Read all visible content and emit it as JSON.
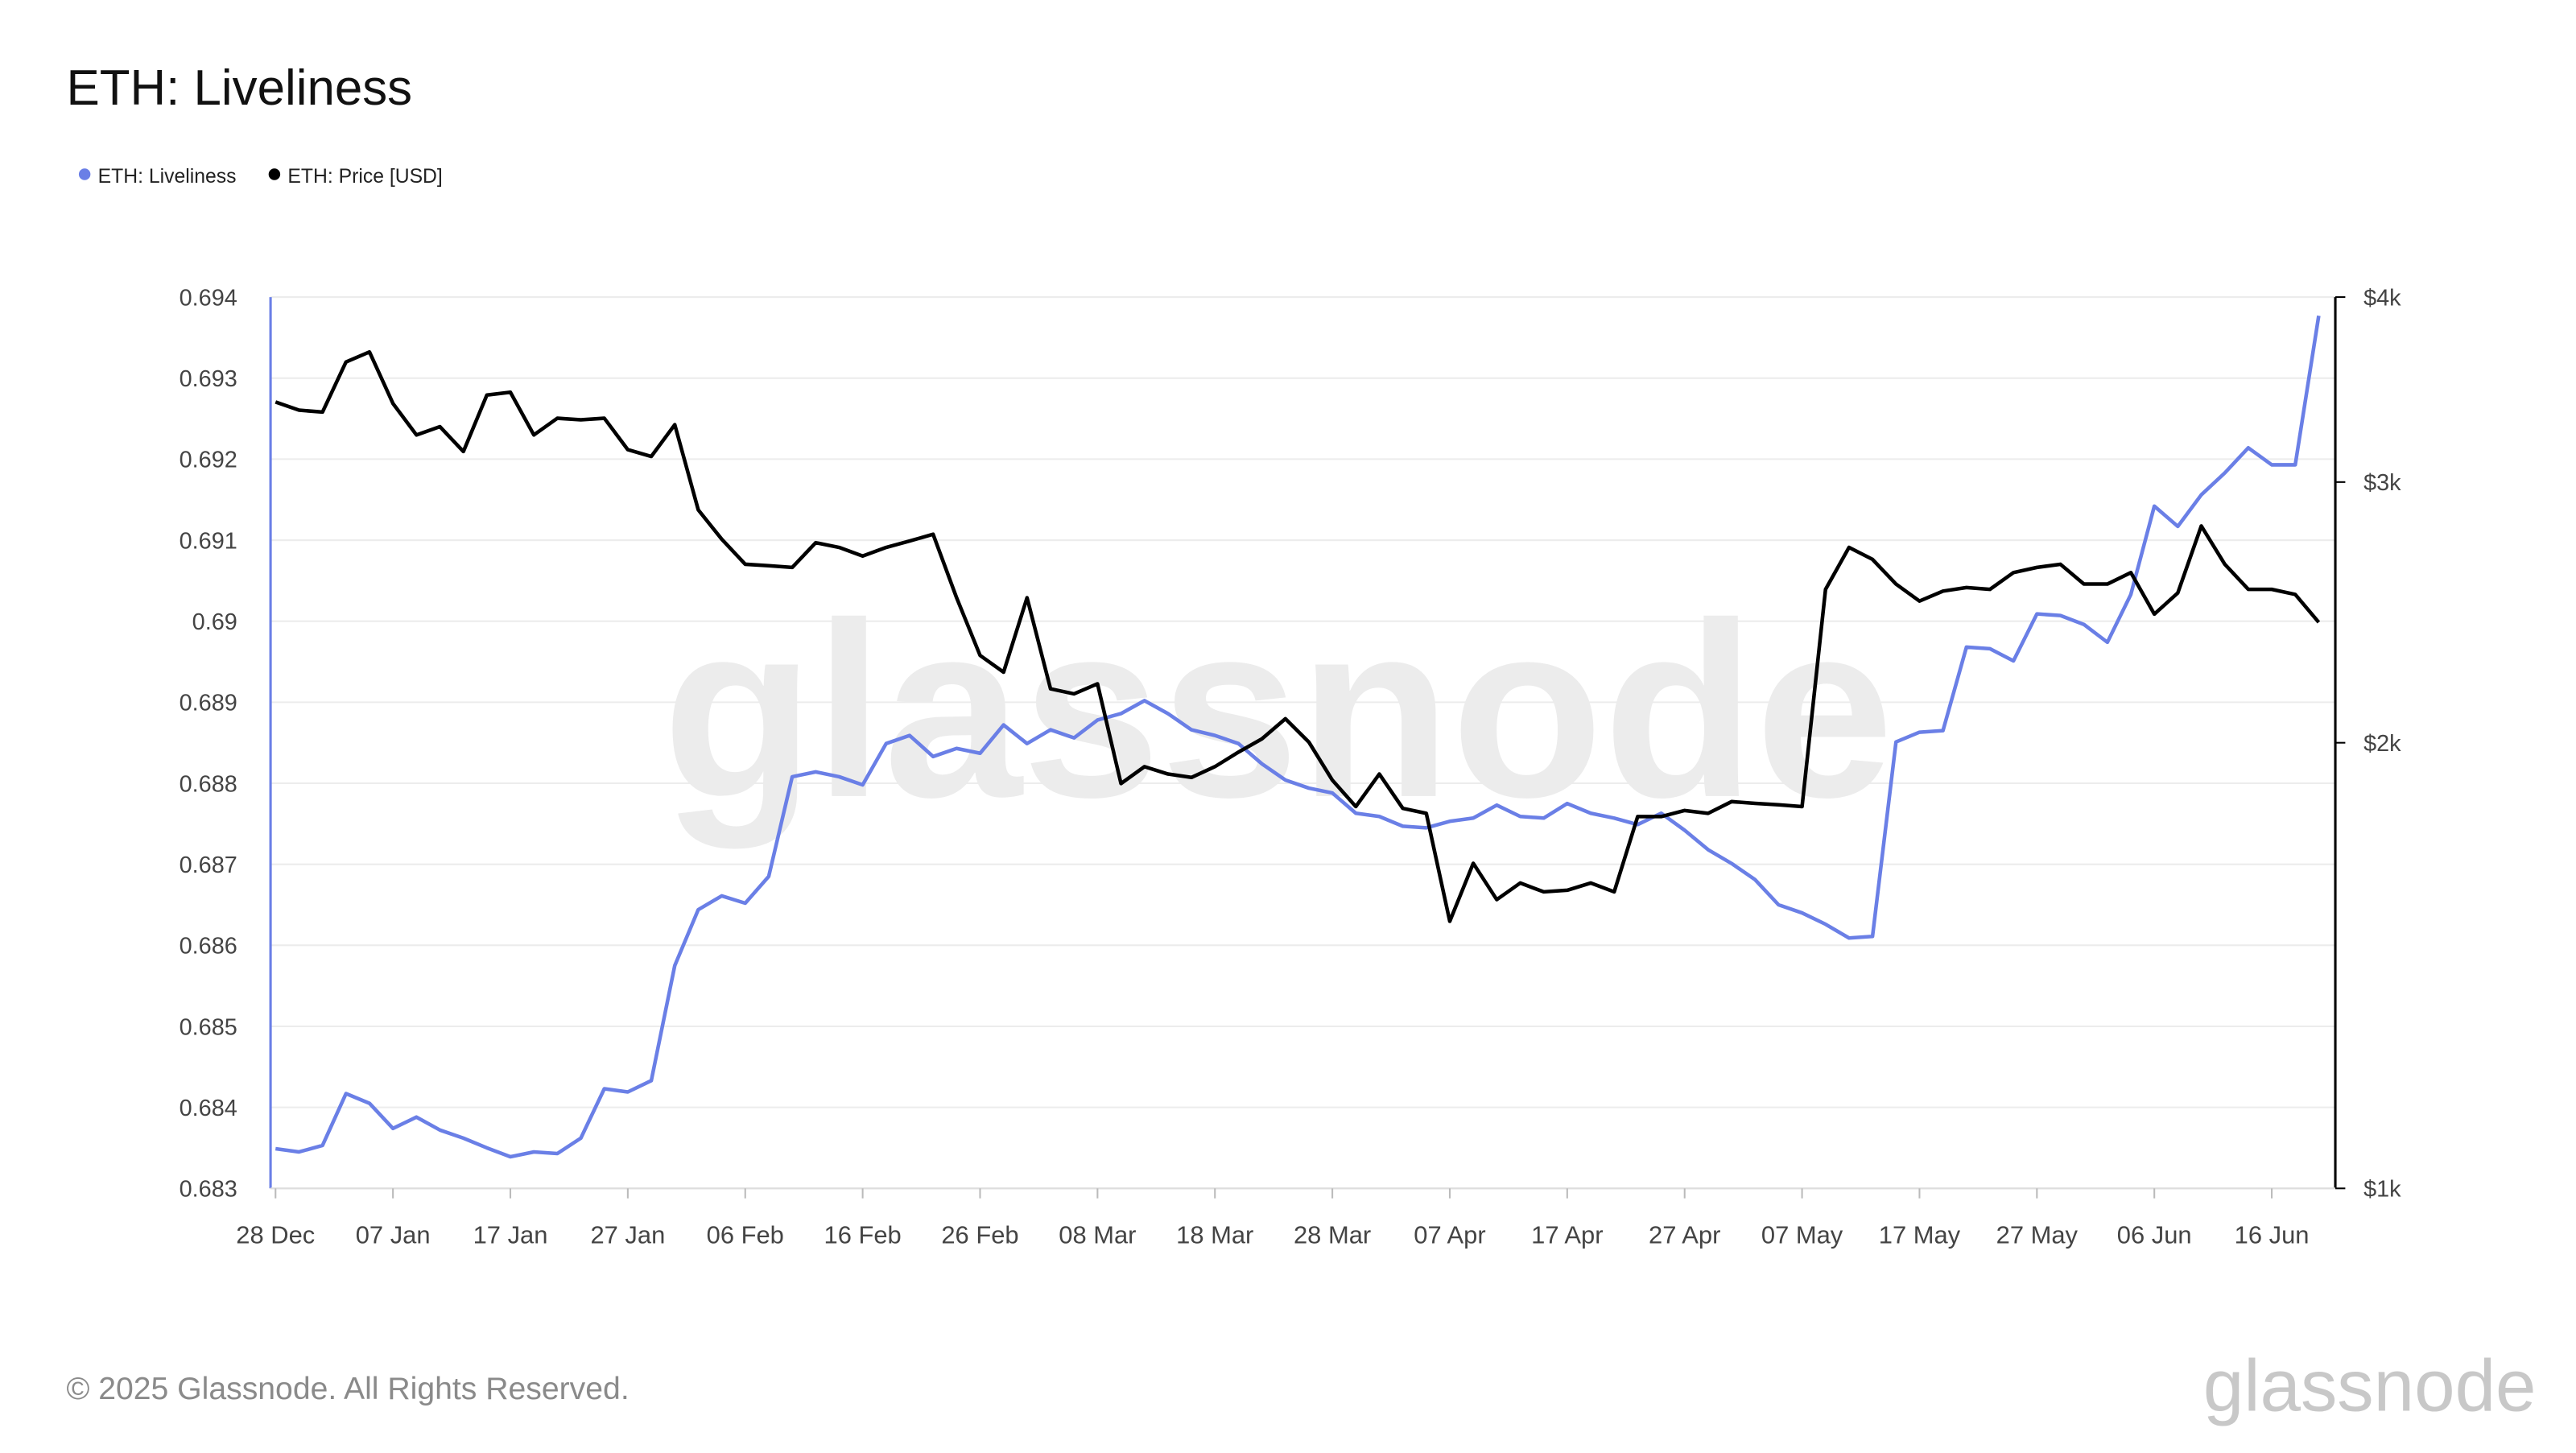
{
  "chart_data": {
    "type": "line",
    "title": "ETH: Liveliness",
    "footer": "© 2025 Glassnode. All Rights Reserved.",
    "brand": "glassnode",
    "x": [
      "28 Dec",
      "30 Dec",
      "01 Jan",
      "03 Jan",
      "05 Jan",
      "07 Jan",
      "09 Jan",
      "11 Jan",
      "13 Jan",
      "15 Jan",
      "17 Jan",
      "19 Jan",
      "21 Jan",
      "23 Jan",
      "25 Jan",
      "27 Jan",
      "29 Jan",
      "31 Jan",
      "02 Feb",
      "04 Feb",
      "06 Feb",
      "08 Feb",
      "10 Feb",
      "12 Feb",
      "14 Feb",
      "16 Feb",
      "18 Feb",
      "20 Feb",
      "22 Feb",
      "24 Feb",
      "26 Feb",
      "28 Feb",
      "02 Mar",
      "04 Mar",
      "06 Mar",
      "08 Mar",
      "10 Mar",
      "12 Mar",
      "14 Mar",
      "16 Mar",
      "18 Mar",
      "20 Mar",
      "22 Mar",
      "24 Mar",
      "26 Mar",
      "28 Mar",
      "30 Mar",
      "01 Apr",
      "03 Apr",
      "05 Apr",
      "07 Apr",
      "09 Apr",
      "11 Apr",
      "13 Apr",
      "15 Apr",
      "17 Apr",
      "19 Apr",
      "21 Apr",
      "23 Apr",
      "25 Apr",
      "27 Apr",
      "29 Apr",
      "01 May",
      "03 May",
      "05 May",
      "07 May",
      "09 May",
      "11 May",
      "13 May",
      "15 May",
      "17 May",
      "19 May",
      "21 May",
      "23 May",
      "25 May",
      "27 May",
      "29 May",
      "31 May",
      "02 Jun",
      "04 Jun",
      "06 Jun",
      "08 Jun",
      "10 Jun",
      "12 Jun",
      "14 Jun",
      "16 Jun",
      "18 Jun",
      "20 Jun"
    ],
    "xticks": [
      "28 Dec",
      "07 Jan",
      "17 Jan",
      "27 Jan",
      "06 Feb",
      "16 Feb",
      "26 Feb",
      "08 Mar",
      "18 Mar",
      "28 Mar",
      "07 Apr",
      "17 Apr",
      "27 Apr",
      "07 May",
      "17 May",
      "27 May",
      "06 Jun",
      "16 Jun"
    ],
    "ylim": [
      0.683,
      0.694
    ],
    "yticks": [
      0.683,
      0.684,
      0.685,
      0.686,
      0.687,
      0.688,
      0.689,
      0.69,
      0.691,
      0.692,
      0.693,
      0.694
    ],
    "y2lim": [
      1000,
      4000
    ],
    "y2scale": "log",
    "y2ticks": [
      {
        "value": 1000,
        "label": "$1k"
      },
      {
        "value": 2000,
        "label": "$2k"
      },
      {
        "value": 3000,
        "label": "$3k"
      },
      {
        "value": 4000,
        "label": "$4k"
      }
    ],
    "grid": true,
    "series": [
      {
        "name": "ETH: Liveliness",
        "color": "#6a7fe6",
        "values": [
          0.68349,
          0.68345,
          0.68353,
          0.68417,
          0.68405,
          0.68374,
          0.68388,
          0.68372,
          0.68362,
          0.6835,
          0.68339,
          0.68345,
          0.68343,
          0.68362,
          0.68423,
          0.68419,
          0.68433,
          0.68575,
          0.68644,
          0.68661,
          0.68652,
          0.68685,
          0.68808,
          0.68814,
          0.68808,
          0.68798,
          0.68849,
          0.68859,
          0.68833,
          0.68843,
          0.68837,
          0.68872,
          0.68849,
          0.68866,
          0.68856,
          0.68878,
          0.68886,
          0.68902,
          0.68886,
          0.68866,
          0.68859,
          0.68849,
          0.68824,
          0.68804,
          0.68794,
          0.68788,
          0.68763,
          0.68759,
          0.68747,
          0.68745,
          0.68753,
          0.68757,
          0.68773,
          0.68759,
          0.68757,
          0.68775,
          0.68763,
          0.68757,
          0.68749,
          0.68763,
          0.68742,
          0.68718,
          0.68701,
          0.68681,
          0.6865,
          0.6864,
          0.68626,
          0.68609,
          0.68611,
          0.68851,
          0.68863,
          0.68865,
          0.68968,
          0.68966,
          0.68951,
          0.69009,
          0.69007,
          0.68996,
          0.68974,
          0.69033,
          0.69142,
          0.69117,
          0.69156,
          0.69183,
          0.69214,
          0.69193,
          0.69193,
          0.69377
        ]
      },
      {
        "name": "ETH: Price [USD]",
        "color": "#000000",
        "axis": "y2",
        "values": [
          3398,
          3355,
          3345,
          3616,
          3673,
          3390,
          3228,
          3270,
          3146,
          3435,
          3450,
          3228,
          3313,
          3305,
          3313,
          3155,
          3122,
          3280,
          2873,
          2745,
          2640,
          2634,
          2627,
          2730,
          2710,
          2674,
          2710,
          2737,
          2766,
          2506,
          2291,
          2232,
          2506,
          2175,
          2158,
          2192,
          1877,
          1927,
          1905,
          1895,
          1927,
          1971,
          2012,
          2076,
          2002,
          1887,
          1811,
          1905,
          1806,
          1792,
          1515,
          1658,
          1567,
          1608,
          1586,
          1590,
          1608,
          1586,
          1783,
          1783,
          1800,
          1792,
          1825,
          1820,
          1816,
          1811,
          2539,
          2710,
          2660,
          2560,
          2493,
          2532,
          2546,
          2539,
          2606,
          2627,
          2640,
          2560,
          2560,
          2606,
          2443,
          2525,
          2802,
          2640,
          2539,
          2539,
          2519,
          2412
        ]
      }
    ]
  }
}
